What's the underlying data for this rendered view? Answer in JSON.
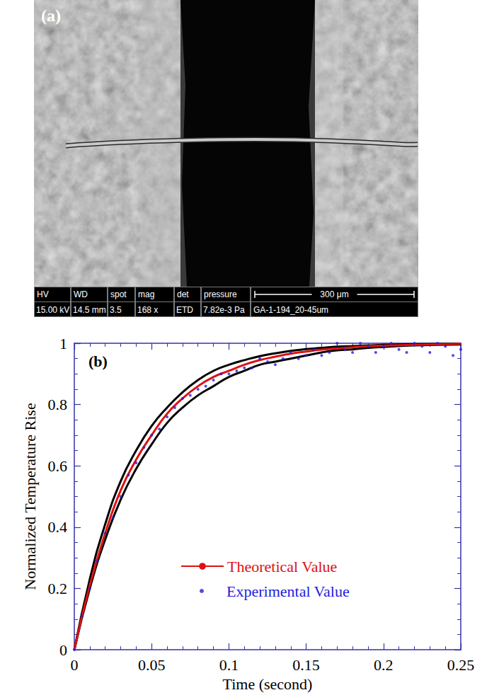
{
  "image_panel": {
    "label": "(a)",
    "info_bar": {
      "fields": [
        {
          "name": "HV",
          "value": "15.00 kV"
        },
        {
          "name": "WD",
          "value": "14.5 mm"
        },
        {
          "name": "spot",
          "value": "3.5"
        },
        {
          "name": "mag",
          "value": "168 x"
        },
        {
          "name": "det",
          "value": "ETD"
        },
        {
          "name": "pressure",
          "value": "7.82e-3 Pa"
        }
      ],
      "scale_bar": "300 μm",
      "sample": "GA-1-194_20-45um"
    }
  },
  "chart_data": {
    "type": "line",
    "title": "(b)",
    "x_label": "Time (second)",
    "y_label": "Normalized Temperature Rise",
    "xlim": [
      0,
      0.25
    ],
    "xticks": [
      0,
      0.05,
      0.1,
      0.15,
      0.2,
      0.25
    ],
    "ylim": [
      0,
      1
    ],
    "yticks": [
      0,
      0.2,
      0.4,
      0.6,
      0.8,
      1
    ],
    "grid": false,
    "legend": "lower right",
    "series": [
      {
        "type": "line",
        "color": "#000000",
        "line_style": "solid",
        "x": [
          0,
          0.01,
          0.02,
          0.03,
          0.04,
          0.05,
          0.06,
          0.07,
          0.08,
          0.09,
          0.1,
          0.11,
          0.12,
          0.13,
          0.14,
          0.15,
          0.16,
          0.17,
          0.18,
          0.19,
          0.2,
          0.22,
          0.25
        ],
        "values": [
          0,
          0.23,
          0.41,
          0.55,
          0.65,
          0.73,
          0.79,
          0.84,
          0.88,
          0.91,
          0.93,
          0.945,
          0.958,
          0.967,
          0.975,
          0.981,
          0.985,
          0.989,
          0.991,
          0.993,
          0.995,
          0.997,
          0.999
        ]
      },
      {
        "type": "line",
        "color": "#000000",
        "line_style": "solid",
        "x": [
          0,
          0.01,
          0.02,
          0.03,
          0.04,
          0.05,
          0.06,
          0.07,
          0.08,
          0.09,
          0.1,
          0.11,
          0.12,
          0.13,
          0.14,
          0.15,
          0.16,
          0.17,
          0.18,
          0.19,
          0.2,
          0.22,
          0.25
        ],
        "values": [
          0,
          0.2,
          0.36,
          0.49,
          0.59,
          0.67,
          0.74,
          0.79,
          0.83,
          0.86,
          0.89,
          0.91,
          0.93,
          0.94,
          0.95,
          0.96,
          0.97,
          0.977,
          0.98,
          0.985,
          0.988,
          0.993,
          0.996
        ]
      },
      {
        "name": "Theoretical Value",
        "type": "line",
        "color": "#dd1111",
        "line_style": "solid",
        "x": [
          0,
          0.01,
          0.02,
          0.03,
          0.04,
          0.05,
          0.06,
          0.07,
          0.08,
          0.09,
          0.1,
          0.11,
          0.12,
          0.13,
          0.14,
          0.15,
          0.16,
          0.17,
          0.18,
          0.19,
          0.2,
          0.22,
          0.25
        ],
        "values": [
          0,
          0.21,
          0.38,
          0.52,
          0.62,
          0.7,
          0.77,
          0.82,
          0.86,
          0.89,
          0.91,
          0.93,
          0.945,
          0.956,
          0.966,
          0.973,
          0.979,
          0.983,
          0.987,
          0.99,
          0.992,
          0.995,
          0.998
        ]
      },
      {
        "name": "Experimental Value",
        "type": "scatter",
        "color": "#2020dd",
        "marker": "circle",
        "x": [
          0,
          0.005,
          0.01,
          0.015,
          0.02,
          0.025,
          0.03,
          0.035,
          0.04,
          0.045,
          0.05,
          0.055,
          0.06,
          0.065,
          0.07,
          0.075,
          0.08,
          0.085,
          0.09,
          0.095,
          0.1,
          0.105,
          0.11,
          0.115,
          0.12,
          0.125,
          0.13,
          0.135,
          0.14,
          0.145,
          0.15,
          0.155,
          0.16,
          0.165,
          0.17,
          0.175,
          0.18,
          0.185,
          0.19,
          0.195,
          0.2,
          0.205,
          0.21,
          0.215,
          0.22,
          0.225,
          0.23,
          0.235,
          0.24,
          0.245,
          0.25
        ],
        "values": [
          0,
          0.11,
          0.2,
          0.29,
          0.38,
          0.43,
          0.5,
          0.57,
          0.61,
          0.66,
          0.7,
          0.72,
          0.76,
          0.79,
          0.82,
          0.83,
          0.85,
          0.86,
          0.88,
          0.9,
          0.9,
          0.91,
          0.92,
          0.92,
          0.95,
          0.94,
          0.93,
          0.95,
          0.97,
          0.95,
          0.96,
          0.98,
          0.96,
          0.97,
          1,
          0.98,
          0.97,
          1,
          0.99,
          0.97,
          0.99,
          1,
          0.98,
          0.97,
          1,
          0.99,
          0.97,
          1,
          0.99,
          0.96,
          0.98
        ]
      }
    ]
  }
}
